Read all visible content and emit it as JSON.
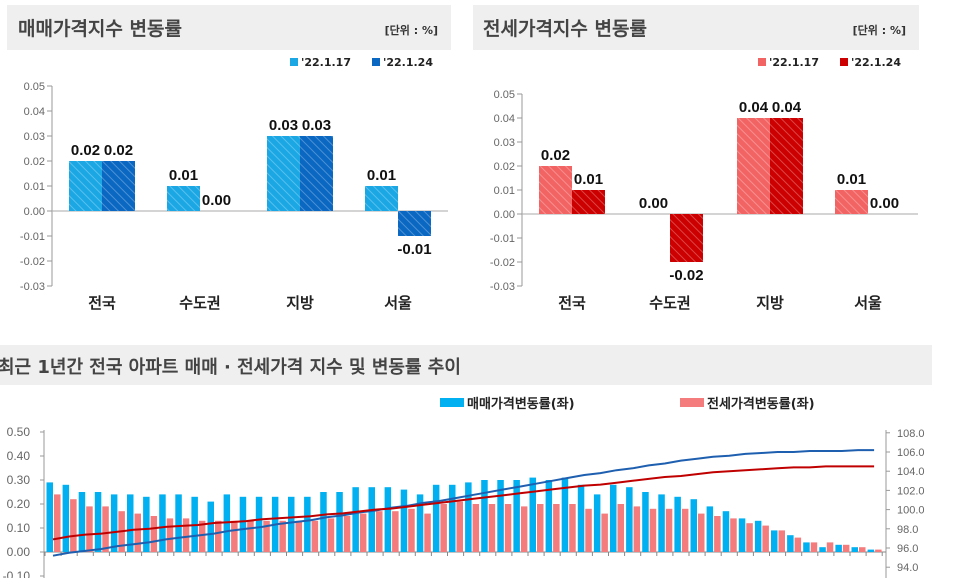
{
  "chart_data": [
    {
      "type": "bar",
      "title": "매매가격지수 변동률",
      "unit": "[단위 : %]",
      "categories": [
        "전국",
        "수도권",
        "지방",
        "서울"
      ],
      "series": [
        {
          "name": "'22.1.17",
          "values": [
            0.02,
            0.01,
            0.03,
            0.01
          ],
          "labels": [
            "0.02",
            "0.01",
            "0.03",
            "0.01"
          ],
          "color": "#1aa7e4"
        },
        {
          "name": "'22.1.24",
          "values": [
            0.02,
            0.0,
            0.03,
            -0.01
          ],
          "labels": [
            "0.02",
            "0.00",
            "0.03",
            "-0.01"
          ],
          "color": "#0a67c2"
        }
      ],
      "ylim": [
        -0.03,
        0.05
      ],
      "yticks": [
        "0.05",
        "0.04",
        "0.03",
        "0.02",
        "0.01",
        "0.00",
        "-0.01",
        "-0.02",
        "-0.03"
      ],
      "legend": "top-right"
    },
    {
      "type": "bar",
      "title": "전세가격지수 변동률",
      "unit": "[단위 : %]",
      "categories": [
        "전국",
        "수도권",
        "지방",
        "서울"
      ],
      "series": [
        {
          "name": "'22.1.17",
          "values": [
            0.02,
            0.0,
            0.04,
            0.01
          ],
          "labels": [
            "0.02",
            "0.00",
            "0.04",
            "0.01"
          ],
          "color": "#f26464"
        },
        {
          "name": "'22.1.24",
          "values": [
            0.01,
            -0.02,
            0.04,
            0.0
          ],
          "labels": [
            "0.01",
            "-0.02",
            "0.04",
            "0.00"
          ],
          "color": "#cc0000"
        }
      ],
      "ylim": [
        -0.03,
        0.05
      ],
      "yticks": [
        "0.05",
        "0.04",
        "0.03",
        "0.02",
        "0.01",
        "0.00",
        "-0.01",
        "-0.02",
        "-0.03"
      ],
      "legend": "top-right"
    },
    {
      "type": "bar+line",
      "title": "최근 1년간 전국 아파트 매매 · 전세가격 지수 및 변동률 추이",
      "series": [
        {
          "name": "매매가격변동률(좌)",
          "axis": "left",
          "kind": "bar",
          "color": "#00b0f0",
          "values": [
            0.29,
            0.28,
            0.25,
            0.25,
            0.24,
            0.24,
            0.23,
            0.24,
            0.24,
            0.23,
            0.21,
            0.24,
            0.23,
            0.23,
            0.23,
            0.23,
            0.23,
            0.25,
            0.25,
            0.27,
            0.27,
            0.27,
            0.26,
            0.24,
            0.28,
            0.28,
            0.29,
            0.3,
            0.3,
            0.3,
            0.31,
            0.3,
            0.31,
            0.28,
            0.24,
            0.28,
            0.27,
            0.25,
            0.24,
            0.23,
            0.22,
            0.19,
            0.17,
            0.14,
            0.13,
            0.09,
            0.07,
            0.04,
            0.02,
            0.03,
            0.02,
            0.01
          ]
        },
        {
          "name": "전세가격변동률(좌)",
          "axis": "left",
          "kind": "bar",
          "color": "#f47c7c",
          "values": [
            0.24,
            0.22,
            0.19,
            0.19,
            0.17,
            0.16,
            0.15,
            0.14,
            0.14,
            0.13,
            0.13,
            0.13,
            0.13,
            0.13,
            0.13,
            0.13,
            0.13,
            0.14,
            0.15,
            0.16,
            0.17,
            0.17,
            0.18,
            0.16,
            0.2,
            0.21,
            0.2,
            0.2,
            0.2,
            0.19,
            0.2,
            0.2,
            0.2,
            0.18,
            0.16,
            0.2,
            0.19,
            0.18,
            0.18,
            0.18,
            0.16,
            0.15,
            0.14,
            0.12,
            0.11,
            0.09,
            0.06,
            0.04,
            0.04,
            0.03,
            0.02,
            0.01
          ]
        },
        {
          "axis": "right",
          "kind": "line",
          "color": "#1f5fb0",
          "values": [
            95.2,
            95.5,
            95.7,
            95.9,
            96.2,
            96.4,
            96.6,
            96.9,
            97.1,
            97.3,
            97.5,
            97.8,
            98.0,
            98.2,
            98.5,
            98.7,
            98.9,
            99.2,
            99.4,
            99.7,
            99.9,
            100.2,
            100.4,
            100.7,
            100.9,
            101.2,
            101.5,
            101.8,
            102.1,
            102.4,
            102.7,
            103.0,
            103.3,
            103.6,
            103.8,
            104.1,
            104.3,
            104.6,
            104.8,
            105.1,
            105.3,
            105.5,
            105.6,
            105.8,
            105.9,
            106.0,
            106.0,
            106.1,
            106.1,
            106.1,
            106.2,
            106.2
          ]
        },
        {
          "axis": "right",
          "kind": "line",
          "color": "#c00000",
          "values": [
            96.9,
            97.2,
            97.4,
            97.5,
            97.7,
            97.9,
            98.0,
            98.2,
            98.3,
            98.4,
            98.6,
            98.7,
            98.8,
            99.0,
            99.1,
            99.2,
            99.3,
            99.5,
            99.6,
            99.8,
            100.0,
            100.1,
            100.3,
            100.5,
            100.7,
            100.9,
            101.1,
            101.3,
            101.5,
            101.7,
            101.9,
            102.1,
            102.3,
            102.5,
            102.6,
            102.8,
            103.0,
            103.2,
            103.4,
            103.5,
            103.7,
            103.9,
            104.0,
            104.1,
            104.2,
            104.3,
            104.4,
            104.4,
            104.5,
            104.5,
            104.5,
            104.5
          ]
        }
      ],
      "ylim_left": [
        -0.1,
        0.5
      ],
      "yticks_left": [
        "0.50",
        "0.40",
        "0.30",
        "0.20",
        "0.10",
        "0.00",
        "-0.10"
      ],
      "ylim_right": [
        94.0,
        108.0
      ],
      "yticks_right": [
        "108.0",
        "106.0",
        "104.0",
        "102.0",
        "100.0",
        "98.0",
        "96.0",
        "94.0"
      ],
      "legend": "top-right"
    }
  ]
}
